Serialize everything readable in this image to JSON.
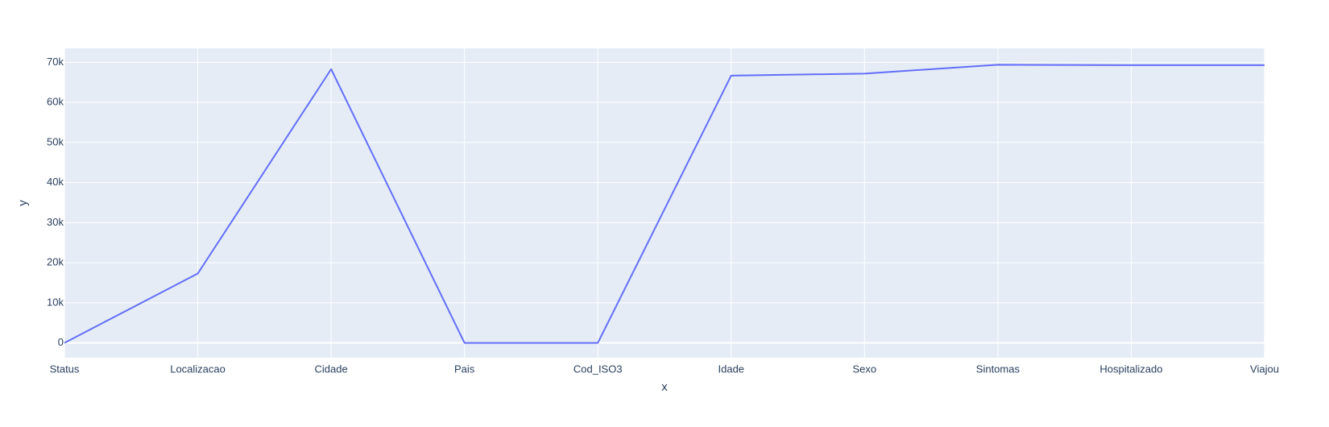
{
  "chart_data": {
    "type": "line",
    "title": "",
    "xlabel": "x",
    "ylabel": "y",
    "categories": [
      "Status",
      "Localizacao",
      "Cidade",
      "Pais",
      "Cod_ISO3",
      "Idade",
      "Sexo",
      "Sintomas",
      "Hospitalizado",
      "Viajou"
    ],
    "series": [
      {
        "values": [
          0,
          17300,
          68300,
          0,
          0,
          66700,
          67200,
          69400,
          69300,
          69300
        ]
      }
    ],
    "ylim": [
      -3700,
      73500
    ],
    "yticks": [
      0,
      10000,
      20000,
      30000,
      40000,
      50000,
      60000,
      70000
    ],
    "ytick_labels": [
      "0",
      "10k",
      "20k",
      "30k",
      "40k",
      "50k",
      "60k",
      "70k"
    ],
    "grid": true,
    "legend": "none",
    "colors": {
      "plot_background": "#E5ECF6",
      "grid": "#ffffff",
      "line": "#636EFA",
      "text": "#2a3f5f"
    }
  }
}
